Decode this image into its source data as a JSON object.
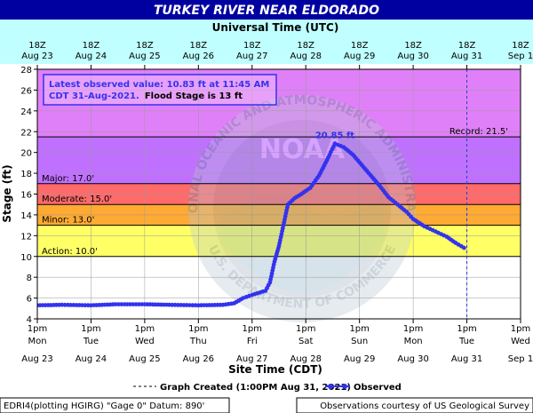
{
  "title": "TURKEY RIVER NEAR ELDORADO",
  "top_axis_label": "Universal Time (UTC)",
  "top_ticks": [
    {
      "hour": "18Z",
      "date": "Aug 23"
    },
    {
      "hour": "18Z",
      "date": "Aug 24"
    },
    {
      "hour": "18Z",
      "date": "Aug 25"
    },
    {
      "hour": "18Z",
      "date": "Aug 26"
    },
    {
      "hour": "18Z",
      "date": "Aug 27"
    },
    {
      "hour": "18Z",
      "date": "Aug 28"
    },
    {
      "hour": "18Z",
      "date": "Aug 29"
    },
    {
      "hour": "18Z",
      "date": "Aug 30"
    },
    {
      "hour": "18Z",
      "date": "Aug 31"
    },
    {
      "hour": "18Z",
      "date": "Sep 1"
    }
  ],
  "bottom_ticks": [
    {
      "time": "1pm",
      "day": "Mon",
      "date": "Aug 23"
    },
    {
      "time": "1pm",
      "day": "Tue",
      "date": "Aug 24"
    },
    {
      "time": "1pm",
      "day": "Wed",
      "date": "Aug 25"
    },
    {
      "time": "1pm",
      "day": "Thu",
      "date": "Aug 26"
    },
    {
      "time": "1pm",
      "day": "Fri",
      "date": "Aug 27"
    },
    {
      "time": "1pm",
      "day": "Sat",
      "date": "Aug 28"
    },
    {
      "time": "1pm",
      "day": "Sun",
      "date": "Aug 29"
    },
    {
      "time": "1pm",
      "day": "Mon",
      "date": "Aug 30"
    },
    {
      "time": "1pm",
      "day": "Tue",
      "date": "Aug 31"
    },
    {
      "time": "1pm",
      "day": "Wed",
      "date": "Sep 1"
    }
  ],
  "info_box": {
    "line1": "Latest observed value: 10.83 ft at 11:45 AM",
    "line2_blue": "CDT 31-Aug-2021.",
    "line2_black": "Flood Stage is 13 ft"
  },
  "peak_label": "20.85 ft",
  "watermark": {
    "center_text": "NOAA",
    "ring_top": "NATIONAL OCEANIC AND ATMOSPHERIC ADMINISTRATION",
    "ring_bottom": "U.S. DEPARTMENT OF COMMERCE"
  },
  "footer": {
    "left": "EDRI4(plotting HGIRG) \"Gage 0\" Datum: 890'",
    "right": "Observations courtesy of US Geological Survey"
  },
  "colors": {
    "title_bg": "#0000a0",
    "header_bg": "#c0ffff",
    "record": "#e080f8",
    "major": "#c070ff",
    "moderate": "#ff6a6a",
    "minor": "#ffaa33",
    "action": "#ffff66",
    "normal": "#ffffff",
    "series": "#3333ee"
  },
  "chart_data": {
    "type": "line",
    "title": "TURKEY RIVER NEAR ELDORADO",
    "xlabel": "Site Time (CDT)",
    "x2label": "Universal Time (UTC)",
    "ylabel": "Stage (ft)",
    "ylim": [
      4,
      28
    ],
    "yticks": [
      4,
      6,
      8,
      10,
      12,
      14,
      16,
      18,
      20,
      22,
      24,
      26,
      28
    ],
    "xlim": [
      "2021-08-23 13:00",
      "2021-09-01 13:00"
    ],
    "grid": true,
    "thresholds": [
      {
        "name": "Record",
        "label": "Record: 21.5'",
        "value": 21.5
      },
      {
        "name": "Major",
        "label": "Major: 17.0'",
        "value": 17.0
      },
      {
        "name": "Moderate",
        "label": "Moderate: 15.0'",
        "value": 15.0
      },
      {
        "name": "Minor",
        "label": "Minor: 13.0'",
        "value": 13.0
      },
      {
        "name": "Action",
        "label": "Action: 10.0'",
        "value": 10.0
      }
    ],
    "graph_created": "2021-08-31 13:00",
    "legend": {
      "graph_created": "Graph Created (1:00PM Aug 31, 2021)",
      "observed": "Observed"
    },
    "series": [
      {
        "name": "Observed",
        "points": [
          [
            "2021-08-23 13:00",
            5.3
          ],
          [
            "2021-08-24 00:00",
            5.35
          ],
          [
            "2021-08-24 13:00",
            5.3
          ],
          [
            "2021-08-25 00:00",
            5.4
          ],
          [
            "2021-08-25 13:00",
            5.4
          ],
          [
            "2021-08-26 00:00",
            5.35
          ],
          [
            "2021-08-26 13:00",
            5.3
          ],
          [
            "2021-08-27 00:00",
            5.35
          ],
          [
            "2021-08-27 05:00",
            5.5
          ],
          [
            "2021-08-27 09:00",
            6.0
          ],
          [
            "2021-08-27 13:00",
            6.3
          ],
          [
            "2021-08-27 19:00",
            6.7
          ],
          [
            "2021-08-27 21:00",
            7.5
          ],
          [
            "2021-08-27 23:00",
            9.5
          ],
          [
            "2021-08-28 01:00",
            11.0
          ],
          [
            "2021-08-28 03:00",
            13.0
          ],
          [
            "2021-08-28 05:00",
            15.0
          ],
          [
            "2021-08-28 08:00",
            15.6
          ],
          [
            "2021-08-28 11:00",
            16.0
          ],
          [
            "2021-08-28 15:00",
            16.6
          ],
          [
            "2021-08-28 19:00",
            17.8
          ],
          [
            "2021-08-28 23:00",
            19.5
          ],
          [
            "2021-08-29 02:00",
            20.85
          ],
          [
            "2021-08-29 06:00",
            20.5
          ],
          [
            "2021-08-29 10:00",
            19.8
          ],
          [
            "2021-08-29 14:00",
            18.8
          ],
          [
            "2021-08-29 18:00",
            17.8
          ],
          [
            "2021-08-29 22:00",
            16.8
          ],
          [
            "2021-08-30 02:00",
            15.7
          ],
          [
            "2021-08-30 06:00",
            15.0
          ],
          [
            "2021-08-30 10:00",
            14.3
          ],
          [
            "2021-08-30 13:00",
            13.6
          ],
          [
            "2021-08-30 18:00",
            12.9
          ],
          [
            "2021-08-30 23:00",
            12.4
          ],
          [
            "2021-08-31 04:00",
            11.9
          ],
          [
            "2021-08-31 08:00",
            11.3
          ],
          [
            "2021-08-31 11:45",
            10.83
          ]
        ]
      }
    ]
  }
}
